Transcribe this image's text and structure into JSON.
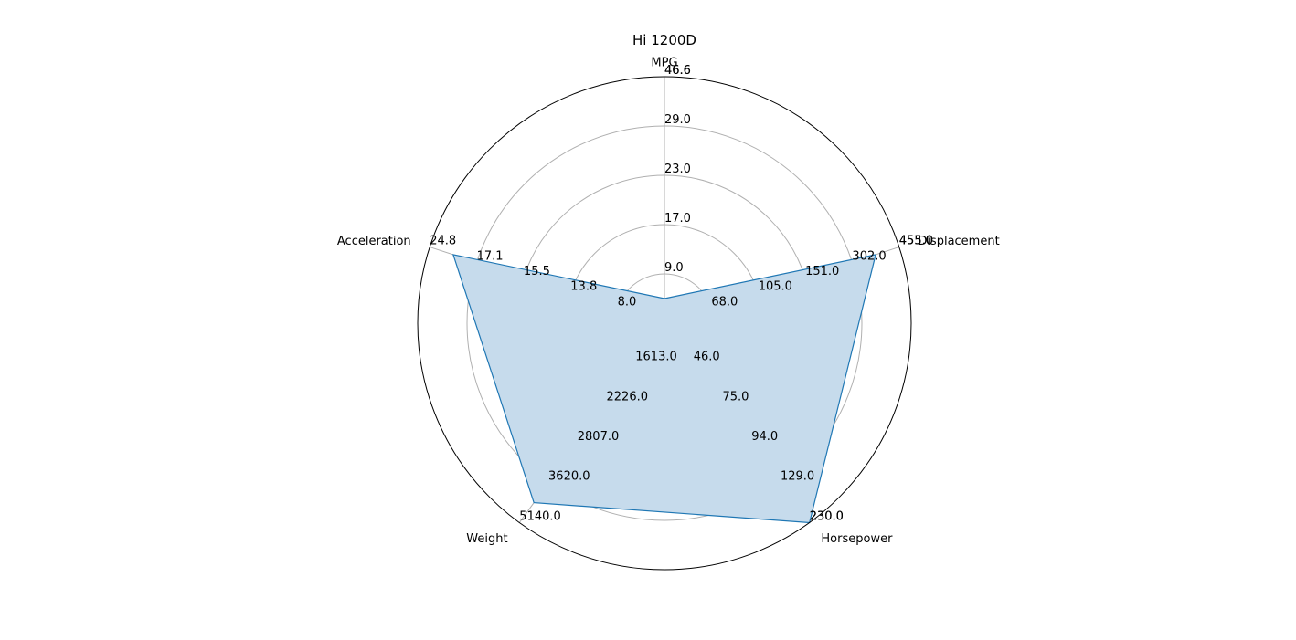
{
  "chart_data": {
    "type": "radar",
    "title": "Hi 1200D",
    "axes": [
      {
        "name": "MPG",
        "ticks": [
          "9.0",
          "17.0",
          "23.0",
          "29.0",
          "46.6",
          "46.6"
        ]
      },
      {
        "name": "Displacement",
        "ticks": [
          "68.0",
          "105.0",
          "151.0",
          "302.0",
          "455.0",
          "455.0"
        ]
      },
      {
        "name": "Horsepower",
        "ticks": [
          "46.0",
          "75.0",
          "94.0",
          "129.0",
          "230.0",
          "230.0"
        ]
      },
      {
        "name": "Weight",
        "ticks": [
          "1613.0",
          "2226.0",
          "2807.0",
          "3620.0",
          "5140.0"
        ]
      },
      {
        "name": "Acceleration",
        "ticks": [
          "8.0",
          "13.8",
          "15.5",
          "17.1",
          "24.8"
        ]
      }
    ],
    "series": [
      {
        "values": [
          0.1,
          0.9,
          1.0,
          0.9,
          0.9
        ]
      }
    ],
    "radial_grid_levels": [
      0.2,
      0.4,
      0.6,
      0.8,
      1.0
    ],
    "colors": {
      "line": "#1f77b4",
      "fill": "#c6dbec",
      "grid": "#b0b0b0",
      "frame": "#000000"
    },
    "grid": true
  }
}
